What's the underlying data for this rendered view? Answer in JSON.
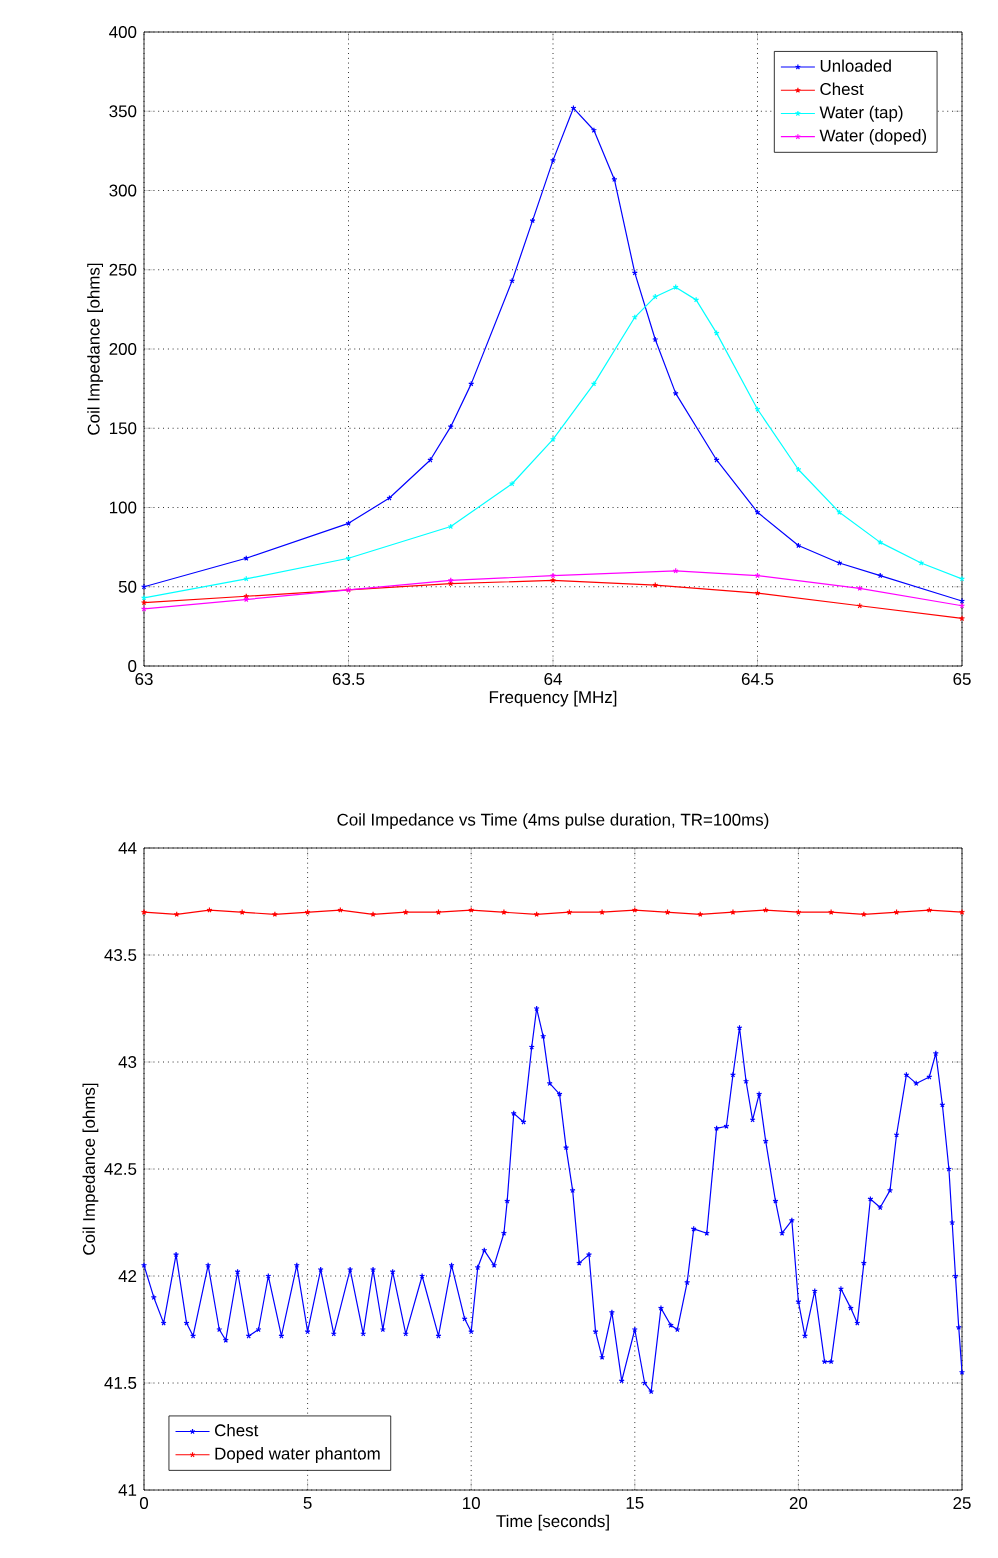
{
  "chart_data": [
    {
      "type": "line",
      "xlabel": "Frequency [MHz]",
      "ylabel": "Coil Impedance [ohms]",
      "xlim": [
        63,
        65
      ],
      "ylim": [
        0,
        400
      ],
      "xticks": [
        63,
        63.5,
        64,
        64.5,
        65
      ],
      "yticks": [
        0,
        50,
        100,
        150,
        200,
        250,
        300,
        350,
        400
      ],
      "grid": true,
      "legend": "top right",
      "marker": "cross",
      "series": [
        {
          "name": "Unloaded",
          "color": "#0000ff",
          "x": [
            63,
            63.25,
            63.5,
            63.6,
            63.7,
            63.75,
            63.8,
            63.9,
            63.95,
            64,
            64.05,
            64.1,
            64.15,
            64.2,
            64.25,
            64.3,
            64.4,
            64.5,
            64.6,
            64.7,
            64.8,
            65
          ],
          "values": [
            50,
            68,
            90,
            106,
            130,
            151,
            178,
            243,
            281,
            319,
            352,
            338,
            307,
            248,
            206,
            172,
            130,
            97,
            76,
            65,
            57,
            41
          ]
        },
        {
          "name": "Chest",
          "color": "#ff0000",
          "x": [
            63,
            63.25,
            63.5,
            63.75,
            64,
            64.25,
            64.5,
            64.75,
            65
          ],
          "values": [
            40,
            44,
            48,
            52,
            54,
            51,
            46,
            38,
            30
          ]
        },
        {
          "name": "Water (tap)",
          "color": "#00ffff",
          "x": [
            63,
            63.25,
            63.5,
            63.75,
            63.9,
            64,
            64.1,
            64.2,
            64.25,
            64.3,
            64.35,
            64.4,
            64.5,
            64.6,
            64.7,
            64.8,
            64.9,
            65
          ],
          "values": [
            43,
            55,
            68,
            88,
            115,
            143,
            178,
            220,
            233,
            239,
            231,
            210,
            162,
            124,
            97,
            78,
            65,
            55
          ]
        },
        {
          "name": "Water (doped)",
          "color": "#ff00ff",
          "x": [
            63,
            63.25,
            63.5,
            63.75,
            64,
            64.3,
            64.5,
            64.75,
            65
          ],
          "values": [
            36,
            42,
            48,
            54,
            57,
            60,
            57,
            49,
            38
          ]
        }
      ]
    },
    {
      "type": "line",
      "title": "Coil Impedance vs Time (4ms pulse duration, TR=100ms)",
      "xlabel": "Time [seconds]",
      "ylabel": "Coil Impedance [ohms]",
      "xlim": [
        0,
        25
      ],
      "ylim": [
        41,
        44
      ],
      "xticks": [
        0,
        5,
        10,
        15,
        20,
        25
      ],
      "yticks": [
        41,
        41.5,
        42,
        42.5,
        43,
        43.5,
        44
      ],
      "grid": true,
      "legend": "bottom left",
      "marker": "cross",
      "series": [
        {
          "name": "Chest",
          "color": "#0000ff",
          "x": [
            0,
            0.3,
            0.6,
            0.98,
            1.3,
            1.5,
            1.96,
            2.3,
            2.5,
            2.86,
            3.2,
            3.5,
            3.8,
            4.2,
            4.67,
            5.0,
            5.4,
            5.8,
            6.3,
            6.7,
            7.0,
            7.3,
            7.6,
            8.0,
            8.5,
            9.0,
            9.4,
            9.8,
            10.0,
            10.2,
            10.4,
            10.7,
            11.0,
            11.1,
            11.3,
            11.6,
            11.85,
            12.0,
            12.2,
            12.4,
            12.7,
            12.9,
            13.1,
            13.3,
            13.6,
            13.8,
            14.0,
            14.3,
            14.6,
            15.0,
            15.3,
            15.5,
            15.8,
            16.1,
            16.3,
            16.6,
            16.8,
            17.2,
            17.5,
            17.8,
            18.0,
            18.2,
            18.4,
            18.6,
            18.8,
            19.0,
            19.3,
            19.5,
            19.8,
            20.0,
            20.2,
            20.5,
            20.8,
            21.0,
            21.3,
            21.6,
            21.8,
            22.0,
            22.2,
            22.5,
            22.8,
            23.0,
            23.3,
            23.6,
            24.0,
            24.2,
            24.4,
            24.6,
            24.7,
            24.8,
            24.9,
            25.0
          ],
          "values": [
            42.05,
            41.9,
            41.78,
            42.1,
            41.78,
            41.72,
            42.05,
            41.75,
            41.7,
            42.02,
            41.72,
            41.75,
            42.0,
            41.72,
            42.05,
            41.74,
            42.03,
            41.73,
            42.03,
            41.73,
            42.03,
            41.75,
            42.02,
            41.73,
            42.0,
            41.72,
            42.05,
            41.8,
            41.74,
            42.04,
            42.12,
            42.05,
            42.2,
            42.35,
            42.76,
            42.72,
            43.07,
            43.25,
            43.12,
            42.9,
            42.85,
            42.6,
            42.4,
            42.06,
            42.1,
            41.74,
            41.62,
            41.83,
            41.51,
            41.75,
            41.5,
            41.46,
            41.85,
            41.77,
            41.75,
            41.97,
            42.22,
            42.2,
            42.69,
            42.7,
            42.94,
            43.16,
            42.91,
            42.73,
            42.85,
            42.63,
            42.35,
            42.2,
            42.26,
            41.88,
            41.72,
            41.93,
            41.6,
            41.6,
            41.94,
            41.85,
            41.78,
            42.06,
            42.36,
            42.32,
            42.4,
            42.66,
            42.94,
            42.9,
            42.93,
            43.04,
            42.8,
            42.5,
            42.25,
            42.0,
            41.76,
            41.55
          ]
        },
        {
          "name": "Doped water phantom",
          "color": "#ff0000",
          "x": [
            0,
            1,
            2,
            3,
            4,
            5,
            6,
            7,
            8,
            9,
            10,
            11,
            12,
            13,
            14,
            15,
            16,
            17,
            18,
            19,
            20,
            21,
            22,
            23,
            24,
            25
          ],
          "values": [
            43.7,
            43.69,
            43.71,
            43.7,
            43.69,
            43.7,
            43.71,
            43.69,
            43.7,
            43.7,
            43.71,
            43.7,
            43.69,
            43.7,
            43.7,
            43.71,
            43.7,
            43.69,
            43.7,
            43.71,
            43.7,
            43.7,
            43.69,
            43.7,
            43.71,
            43.7
          ]
        }
      ]
    }
  ]
}
